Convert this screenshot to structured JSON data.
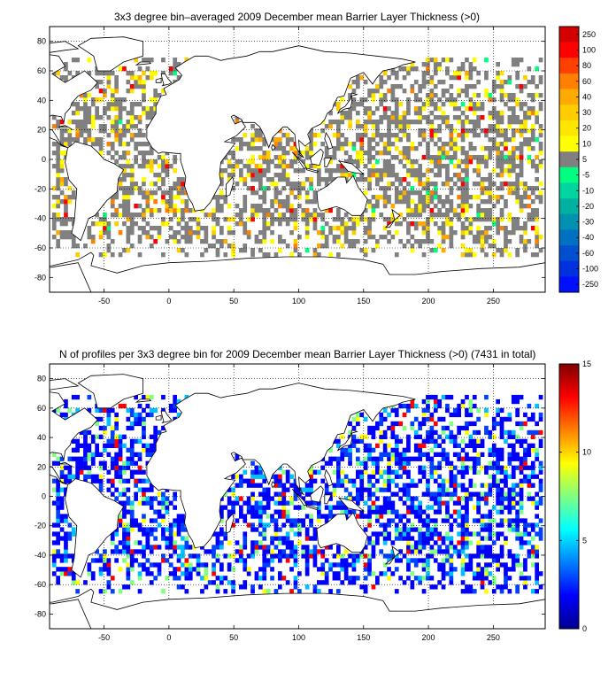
{
  "top_panel": {
    "title": "3x3 degree bin–averaged 2009 December mean Barrier Layer Thickness (>0)",
    "x_ticks": [
      "-50",
      "0",
      "50",
      "100",
      "150",
      "200",
      "250"
    ],
    "y_ticks": [
      "80",
      "60",
      "40",
      "20",
      "0",
      "-20",
      "-40",
      "-60",
      "-80"
    ],
    "colorbar_labels": [
      "250",
      "100",
      "80",
      "60",
      "40",
      "30",
      "20",
      "10",
      "5",
      "-5",
      "-10",
      "-20",
      "-30",
      "-40",
      "-60",
      "-100",
      "-250"
    ],
    "colorbar_colors": [
      "#d40000",
      "#ff0000",
      "#ff4000",
      "#ff8000",
      "#ffaa00",
      "#ffcc00",
      "#ffe600",
      "#ffff00",
      "#808080",
      "#00ff80",
      "#00d4a0",
      "#00b0a0",
      "#0090b0",
      "#0070c0",
      "#0050d0",
      "#0030e0",
      "#0010ff"
    ]
  },
  "bottom_panel": {
    "title": "N of profiles per 3x3 degree bin for 2009 December mean Barrier Layer Thickness (>0) (7431 in total)",
    "x_ticks": [
      "-50",
      "0",
      "50",
      "100",
      "150",
      "200",
      "250"
    ],
    "y_ticks": [
      "80",
      "60",
      "40",
      "20",
      "0",
      "-20",
      "-40",
      "-60",
      "-80"
    ],
    "colorbar_ticks": [
      "15",
      "10",
      "5",
      "0"
    ]
  },
  "chart_data": [
    {
      "type": "heatmap",
      "title": "3x3 degree bin–averaged 2009 December mean Barrier Layer Thickness (>0)",
      "xlim": [
        -92,
        290
      ],
      "ylim": [
        -90,
        90
      ],
      "bin_size_deg": 3,
      "colorbar_levels": [
        250,
        100,
        80,
        60,
        40,
        30,
        20,
        10,
        5,
        -5,
        -10,
        -20,
        -30,
        -40,
        -60,
        -100,
        -250
      ]
    },
    {
      "type": "heatmap",
      "title": "N of profiles per 3x3 degree bin for 2009 December mean Barrier Layer Thickness (>0) (7431 in total)",
      "xlim": [
        -92,
        290
      ],
      "ylim": [
        -90,
        90
      ],
      "bin_size_deg": 3,
      "total_profiles": 7431,
      "colorbar_range": [
        0,
        15
      ]
    }
  ]
}
